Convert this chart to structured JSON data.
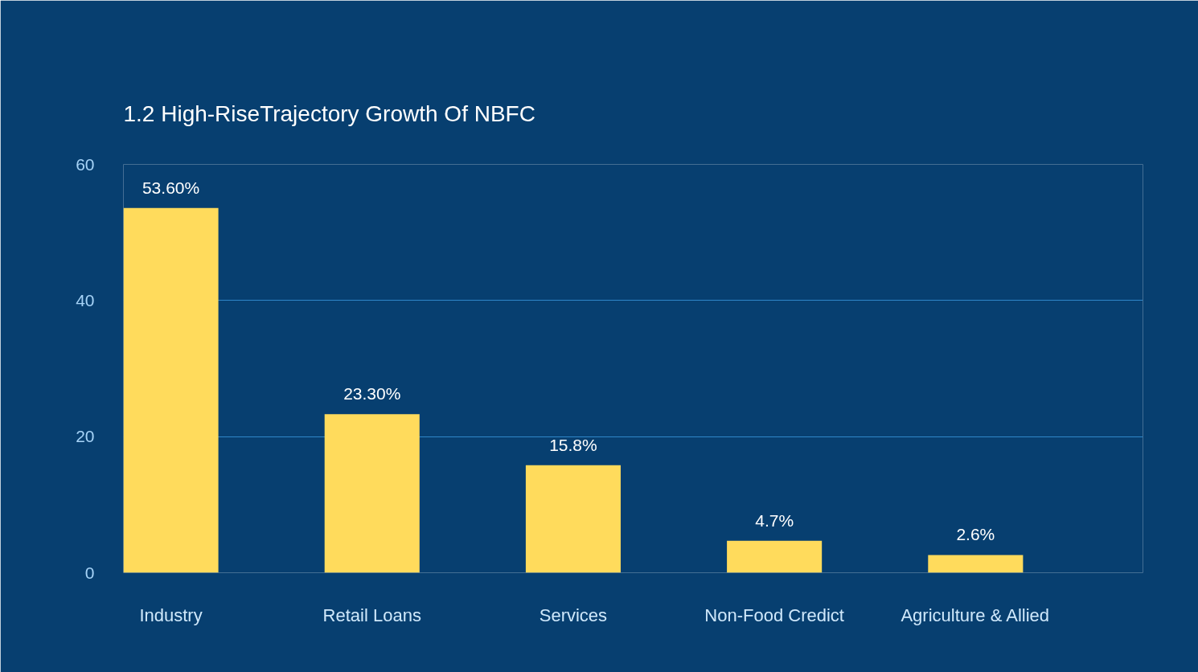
{
  "chart_data": {
    "type": "bar",
    "title": "1.2  High-RiseTrajectory Growth Of NBFC",
    "categories": [
      "Industry",
      "Retail Loans",
      "Services",
      "Non-Food Credict",
      "Agriculture & Allied"
    ],
    "values": [
      53.6,
      23.3,
      15.8,
      4.7,
      2.6
    ],
    "value_labels": [
      "53.60%",
      "23.30%",
      "15.8%",
      "4.7%",
      "2.6%"
    ],
    "color": "#ffdb5c",
    "ylim": [
      0,
      60
    ],
    "yticks": [
      0,
      20,
      40,
      60
    ],
    "grid": "y"
  }
}
